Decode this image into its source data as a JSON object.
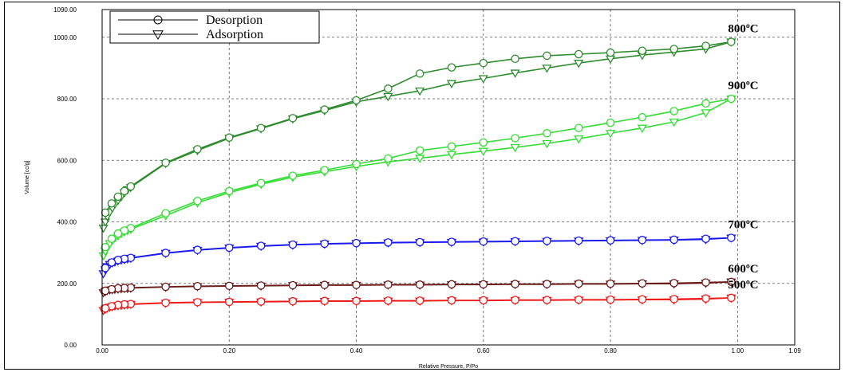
{
  "chart_data": {
    "type": "line",
    "xlabel": "Relative Pressure, P/Po",
    "ylabel": "Volume [cc/g]",
    "xlim": [
      0.0,
      1.09
    ],
    "ylim": [
      0.0,
      1090.0
    ],
    "x_ticks": [
      "0.00",
      "0.20",
      "0.40",
      "0.60",
      "0.80",
      "1.00",
      "1.09"
    ],
    "y_ticks": [
      "0.00",
      "200.00",
      "400.00",
      "600.00",
      "800.00",
      "1000.00",
      "1090.00"
    ],
    "grid": "dashed",
    "legend": {
      "placement": "top-left",
      "entries": [
        {
          "label": "Desorption",
          "marker": "circle"
        },
        {
          "label": "Adsorption",
          "marker": "triangle-down"
        }
      ]
    },
    "series": [
      {
        "name": "800ºC",
        "color": "#2e8b2e",
        "adsorption": [
          [
            0.002,
            380
          ],
          [
            0.005,
            400
          ],
          [
            0.008,
            418
          ],
          [
            0.012,
            432
          ],
          [
            0.016,
            445
          ],
          [
            0.02,
            458
          ],
          [
            0.025,
            470
          ],
          [
            0.03,
            482
          ],
          [
            0.035,
            495
          ],
          [
            0.04,
            505
          ],
          [
            0.045,
            512
          ],
          [
            0.1,
            590
          ],
          [
            0.15,
            632
          ],
          [
            0.2,
            672
          ],
          [
            0.25,
            703
          ],
          [
            0.3,
            735
          ],
          [
            0.35,
            762
          ],
          [
            0.4,
            790
          ],
          [
            0.45,
            808
          ],
          [
            0.5,
            826
          ],
          [
            0.55,
            850
          ],
          [
            0.6,
            866
          ],
          [
            0.65,
            884
          ],
          [
            0.7,
            900
          ],
          [
            0.75,
            916
          ],
          [
            0.8,
            930
          ],
          [
            0.85,
            942
          ],
          [
            0.9,
            952
          ],
          [
            0.95,
            962
          ],
          [
            0.99,
            985
          ]
        ],
        "desorption": [
          [
            0.99,
            985
          ],
          [
            0.95,
            972
          ],
          [
            0.9,
            962
          ],
          [
            0.85,
            956
          ],
          [
            0.8,
            950
          ],
          [
            0.75,
            945
          ],
          [
            0.7,
            940
          ],
          [
            0.65,
            930
          ],
          [
            0.6,
            916
          ],
          [
            0.55,
            902
          ],
          [
            0.5,
            882
          ],
          [
            0.45,
            833
          ],
          [
            0.4,
            795
          ],
          [
            0.35,
            765
          ],
          [
            0.3,
            737
          ],
          [
            0.25,
            705
          ],
          [
            0.2,
            674
          ],
          [
            0.15,
            636
          ],
          [
            0.1,
            592
          ],
          [
            0.045,
            515
          ],
          [
            0.035,
            500
          ],
          [
            0.025,
            482
          ],
          [
            0.015,
            460
          ],
          [
            0.005,
            430
          ]
        ]
      },
      {
        "name": "900ºC",
        "color": "#33dd33",
        "adsorption": [
          [
            0.002,
            290
          ],
          [
            0.005,
            305
          ],
          [
            0.008,
            318
          ],
          [
            0.012,
            330
          ],
          [
            0.016,
            340
          ],
          [
            0.02,
            348
          ],
          [
            0.025,
            355
          ],
          [
            0.03,
            362
          ],
          [
            0.035,
            368
          ],
          [
            0.04,
            372
          ],
          [
            0.045,
            376
          ],
          [
            0.1,
            420
          ],
          [
            0.15,
            462
          ],
          [
            0.2,
            495
          ],
          [
            0.25,
            522
          ],
          [
            0.3,
            545
          ],
          [
            0.35,
            563
          ],
          [
            0.4,
            580
          ],
          [
            0.45,
            595
          ],
          [
            0.5,
            607
          ],
          [
            0.55,
            619
          ],
          [
            0.6,
            630
          ],
          [
            0.65,
            642
          ],
          [
            0.7,
            655
          ],
          [
            0.75,
            670
          ],
          [
            0.8,
            688
          ],
          [
            0.85,
            705
          ],
          [
            0.9,
            725
          ],
          [
            0.95,
            755
          ],
          [
            0.99,
            800
          ]
        ],
        "desorption": [
          [
            0.99,
            800
          ],
          [
            0.95,
            785
          ],
          [
            0.9,
            760
          ],
          [
            0.85,
            740
          ],
          [
            0.8,
            722
          ],
          [
            0.75,
            705
          ],
          [
            0.7,
            688
          ],
          [
            0.65,
            672
          ],
          [
            0.6,
            658
          ],
          [
            0.55,
            645
          ],
          [
            0.5,
            632
          ],
          [
            0.45,
            606
          ],
          [
            0.4,
            588
          ],
          [
            0.35,
            568
          ],
          [
            0.3,
            550
          ],
          [
            0.25,
            526
          ],
          [
            0.2,
            500
          ],
          [
            0.15,
            468
          ],
          [
            0.1,
            428
          ],
          [
            0.045,
            380
          ],
          [
            0.035,
            372
          ],
          [
            0.025,
            362
          ],
          [
            0.015,
            345
          ],
          [
            0.005,
            318
          ]
        ]
      },
      {
        "name": "700ºC",
        "color": "#1a1aee",
        "adsorption": [
          [
            0.002,
            232
          ],
          [
            0.005,
            245
          ],
          [
            0.008,
            255
          ],
          [
            0.012,
            262
          ],
          [
            0.016,
            267
          ],
          [
            0.02,
            270
          ],
          [
            0.025,
            273
          ],
          [
            0.03,
            276
          ],
          [
            0.035,
            278
          ],
          [
            0.04,
            280
          ],
          [
            0.045,
            282
          ],
          [
            0.1,
            298
          ],
          [
            0.15,
            308
          ],
          [
            0.2,
            315
          ],
          [
            0.25,
            321
          ],
          [
            0.3,
            325
          ],
          [
            0.35,
            328
          ],
          [
            0.4,
            330
          ],
          [
            0.45,
            332
          ],
          [
            0.5,
            333
          ],
          [
            0.55,
            334
          ],
          [
            0.6,
            335
          ],
          [
            0.65,
            336
          ],
          [
            0.7,
            337
          ],
          [
            0.75,
            338
          ],
          [
            0.8,
            339
          ],
          [
            0.85,
            340
          ],
          [
            0.9,
            341
          ],
          [
            0.95,
            343
          ],
          [
            0.99,
            348
          ]
        ],
        "desorption": [
          [
            0.99,
            348
          ],
          [
            0.95,
            345
          ],
          [
            0.9,
            342
          ],
          [
            0.85,
            341
          ],
          [
            0.8,
            340
          ],
          [
            0.75,
            339
          ],
          [
            0.7,
            338
          ],
          [
            0.65,
            337
          ],
          [
            0.6,
            336
          ],
          [
            0.55,
            335
          ],
          [
            0.5,
            334
          ],
          [
            0.45,
            333
          ],
          [
            0.4,
            331
          ],
          [
            0.35,
            329
          ],
          [
            0.3,
            326
          ],
          [
            0.25,
            322
          ],
          [
            0.2,
            316
          ],
          [
            0.15,
            309
          ],
          [
            0.1,
            299
          ],
          [
            0.045,
            283
          ],
          [
            0.035,
            280
          ],
          [
            0.025,
            276
          ],
          [
            0.015,
            268
          ],
          [
            0.005,
            250
          ]
        ]
      },
      {
        "name": "600ºC",
        "color": "#6b1a1a",
        "adsorption": [
          [
            0.002,
            170
          ],
          [
            0.005,
            174
          ],
          [
            0.008,
            177
          ],
          [
            0.012,
            179
          ],
          [
            0.016,
            180
          ],
          [
            0.02,
            181
          ],
          [
            0.025,
            182
          ],
          [
            0.03,
            183
          ],
          [
            0.035,
            184
          ],
          [
            0.04,
            184
          ],
          [
            0.045,
            185
          ],
          [
            0.1,
            188
          ],
          [
            0.15,
            190
          ],
          [
            0.2,
            191
          ],
          [
            0.25,
            192
          ],
          [
            0.3,
            193
          ],
          [
            0.35,
            194
          ],
          [
            0.4,
            194
          ],
          [
            0.45,
            195
          ],
          [
            0.5,
            195
          ],
          [
            0.55,
            196
          ],
          [
            0.6,
            196
          ],
          [
            0.65,
            197
          ],
          [
            0.7,
            197
          ],
          [
            0.75,
            198
          ],
          [
            0.8,
            198
          ],
          [
            0.85,
            199
          ],
          [
            0.9,
            199
          ],
          [
            0.95,
            201
          ],
          [
            0.99,
            205
          ]
        ],
        "desorption": [
          [
            0.99,
            205
          ],
          [
            0.95,
            203
          ],
          [
            0.9,
            201
          ],
          [
            0.85,
            200
          ],
          [
            0.8,
            199
          ],
          [
            0.75,
            199
          ],
          [
            0.7,
            198
          ],
          [
            0.65,
            198
          ],
          [
            0.6,
            197
          ],
          [
            0.55,
            197
          ],
          [
            0.5,
            196
          ],
          [
            0.45,
            196
          ],
          [
            0.4,
            195
          ],
          [
            0.35,
            195
          ],
          [
            0.3,
            194
          ],
          [
            0.25,
            193
          ],
          [
            0.2,
            192
          ],
          [
            0.15,
            191
          ],
          [
            0.1,
            189
          ],
          [
            0.045,
            186
          ],
          [
            0.035,
            185
          ],
          [
            0.025,
            184
          ],
          [
            0.015,
            181
          ],
          [
            0.005,
            176
          ]
        ]
      },
      {
        "name": "500ºC",
        "color": "#ee1a1a",
        "adsorption": [
          [
            0.002,
            112
          ],
          [
            0.005,
            117
          ],
          [
            0.008,
            120
          ],
          [
            0.012,
            123
          ],
          [
            0.016,
            125
          ],
          [
            0.02,
            127
          ],
          [
            0.025,
            128
          ],
          [
            0.03,
            129
          ],
          [
            0.035,
            130
          ],
          [
            0.04,
            131
          ],
          [
            0.045,
            132
          ],
          [
            0.1,
            136
          ],
          [
            0.15,
            138
          ],
          [
            0.2,
            139
          ],
          [
            0.25,
            140
          ],
          [
            0.3,
            141
          ],
          [
            0.35,
            142
          ],
          [
            0.4,
            142
          ],
          [
            0.45,
            143
          ],
          [
            0.5,
            143
          ],
          [
            0.55,
            144
          ],
          [
            0.6,
            144
          ],
          [
            0.65,
            145
          ],
          [
            0.7,
            145
          ],
          [
            0.75,
            146
          ],
          [
            0.8,
            146
          ],
          [
            0.85,
            147
          ],
          [
            0.9,
            147
          ],
          [
            0.95,
            149
          ],
          [
            0.99,
            153
          ]
        ],
        "desorption": [
          [
            0.99,
            153
          ],
          [
            0.95,
            151
          ],
          [
            0.9,
            149
          ],
          [
            0.85,
            148
          ],
          [
            0.8,
            147
          ],
          [
            0.75,
            147
          ],
          [
            0.7,
            146
          ],
          [
            0.65,
            146
          ],
          [
            0.6,
            145
          ],
          [
            0.55,
            145
          ],
          [
            0.5,
            144
          ],
          [
            0.45,
            144
          ],
          [
            0.4,
            143
          ],
          [
            0.35,
            143
          ],
          [
            0.3,
            142
          ],
          [
            0.25,
            141
          ],
          [
            0.2,
            140
          ],
          [
            0.15,
            139
          ],
          [
            0.1,
            137
          ],
          [
            0.045,
            133
          ],
          [
            0.035,
            132
          ],
          [
            0.025,
            130
          ],
          [
            0.015,
            126
          ],
          [
            0.005,
            119
          ]
        ]
      }
    ]
  }
}
